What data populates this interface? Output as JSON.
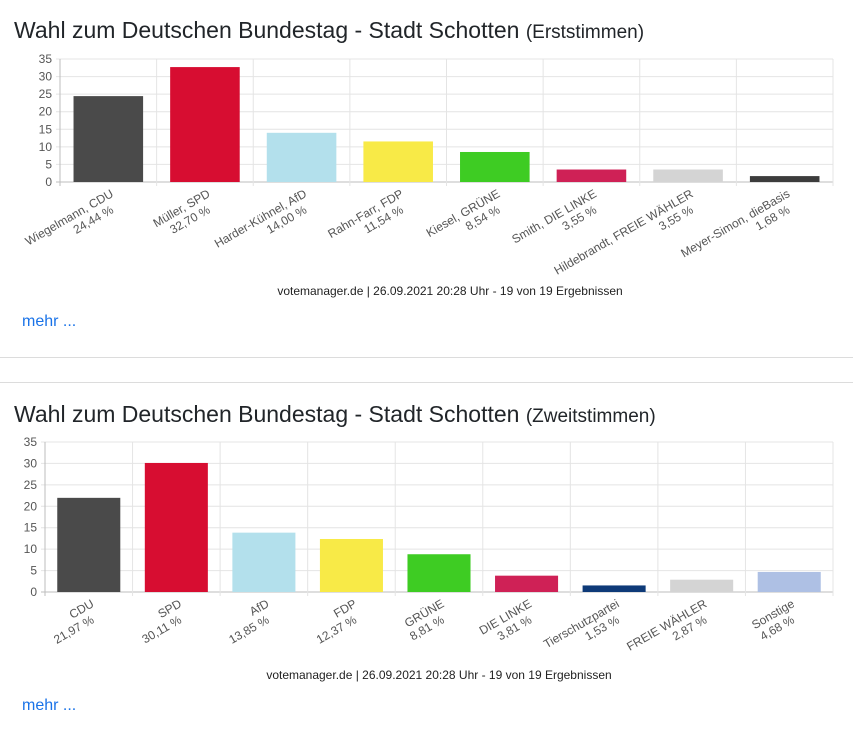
{
  "sections": [
    {
      "title": "Wahl zum Deutschen Bundestag - Stadt Schotten",
      "subtitle": "(Erststimmen)",
      "source": "votemanager.de | 26.09.2021 20:28 Uhr - 19 von 19 Ergebnissen",
      "more_link": "mehr ..."
    },
    {
      "title": "Wahl zum Deutschen Bundestag - Stadt Schotten",
      "subtitle": "(Zweitstimmen)",
      "source": "votemanager.de | 26.09.2021 20:28 Uhr - 19 von 19 Ergebnissen",
      "more_link": "mehr ..."
    }
  ],
  "chart_data": [
    {
      "type": "bar",
      "categories": [
        "Wiegelmann, CDU",
        "Müller, SPD",
        "Harder-Kühnel, AfD",
        "Rahn-Farr, FDP",
        "Kiesel, GRÜNE",
        "Smith, DIE LINKE",
        "Hildebrandt, FREIE WÄHLER",
        "Meyer-Simon, dieBasis"
      ],
      "value_labels": [
        "24,44 %",
        "32,70 %",
        "14,00 %",
        "11,54 %",
        "8,54 %",
        "3,55 %",
        "3,55 %",
        "1,68 %"
      ],
      "values": [
        24.44,
        32.7,
        14.0,
        11.54,
        8.54,
        3.55,
        3.55,
        1.68
      ],
      "colors": [
        "#4a4a4a",
        "#d70d31",
        "#b3e0ec",
        "#f8ea47",
        "#3ecc23",
        "#cf2156",
        "#d4d4d4",
        "#3c3c3c"
      ],
      "ylim": [
        0,
        35
      ],
      "yticks": [
        0,
        5,
        10,
        15,
        20,
        25,
        30,
        35
      ],
      "grid": true
    },
    {
      "type": "bar",
      "categories": [
        "CDU",
        "SPD",
        "AfD",
        "FDP",
        "GRÜNE",
        "DIE LINKE",
        "Tierschutzpartei",
        "FREIE WÄHLER",
        "Sonstige"
      ],
      "value_labels": [
        "21,97 %",
        "30,11 %",
        "13,85 %",
        "12,37 %",
        "8,81 %",
        "3,81 %",
        "1,53 %",
        "2,87 %",
        "4,68 %"
      ],
      "values": [
        21.97,
        30.11,
        13.85,
        12.37,
        8.81,
        3.81,
        1.53,
        2.87,
        4.68
      ],
      "colors": [
        "#4a4a4a",
        "#d70d31",
        "#b3e0ec",
        "#f8ea47",
        "#3ecc23",
        "#cf2156",
        "#0e3a78",
        "#d4d4d4",
        "#aec0e4"
      ],
      "ylim": [
        0,
        35
      ],
      "yticks": [
        0,
        5,
        10,
        15,
        20,
        25,
        30,
        35
      ],
      "grid": true
    }
  ]
}
